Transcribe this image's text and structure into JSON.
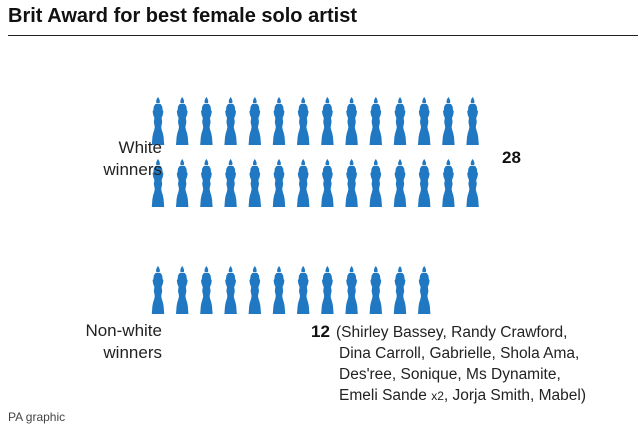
{
  "title": "Brit Award for best female solo artist",
  "source": "PA graphic",
  "colors": {
    "icon": "#1f78c1"
  },
  "icon": "brit-award-statuette-icon",
  "chart_data": {
    "type": "pictogram",
    "icons_per_row": 14,
    "groups": [
      {
        "label_line1": "White",
        "label_line2": "winners",
        "count": 28,
        "count_label": "28"
      },
      {
        "label_line1": "Non-white",
        "label_line2": "winners",
        "count": 12,
        "count_label": "12",
        "names": [
          {
            "text": "(Shirley Bassey, Randy Crawford,"
          },
          {
            "text": "Dina Carroll, Gabrielle, Shola Ama,"
          },
          {
            "text": "Des'ree, Sonique, Ms Dynamite,"
          },
          {
            "text": "Emeli Sande",
            "suffix": "x2",
            "tail": ", Jorja Smith, Mabel)"
          }
        ]
      }
    ]
  }
}
